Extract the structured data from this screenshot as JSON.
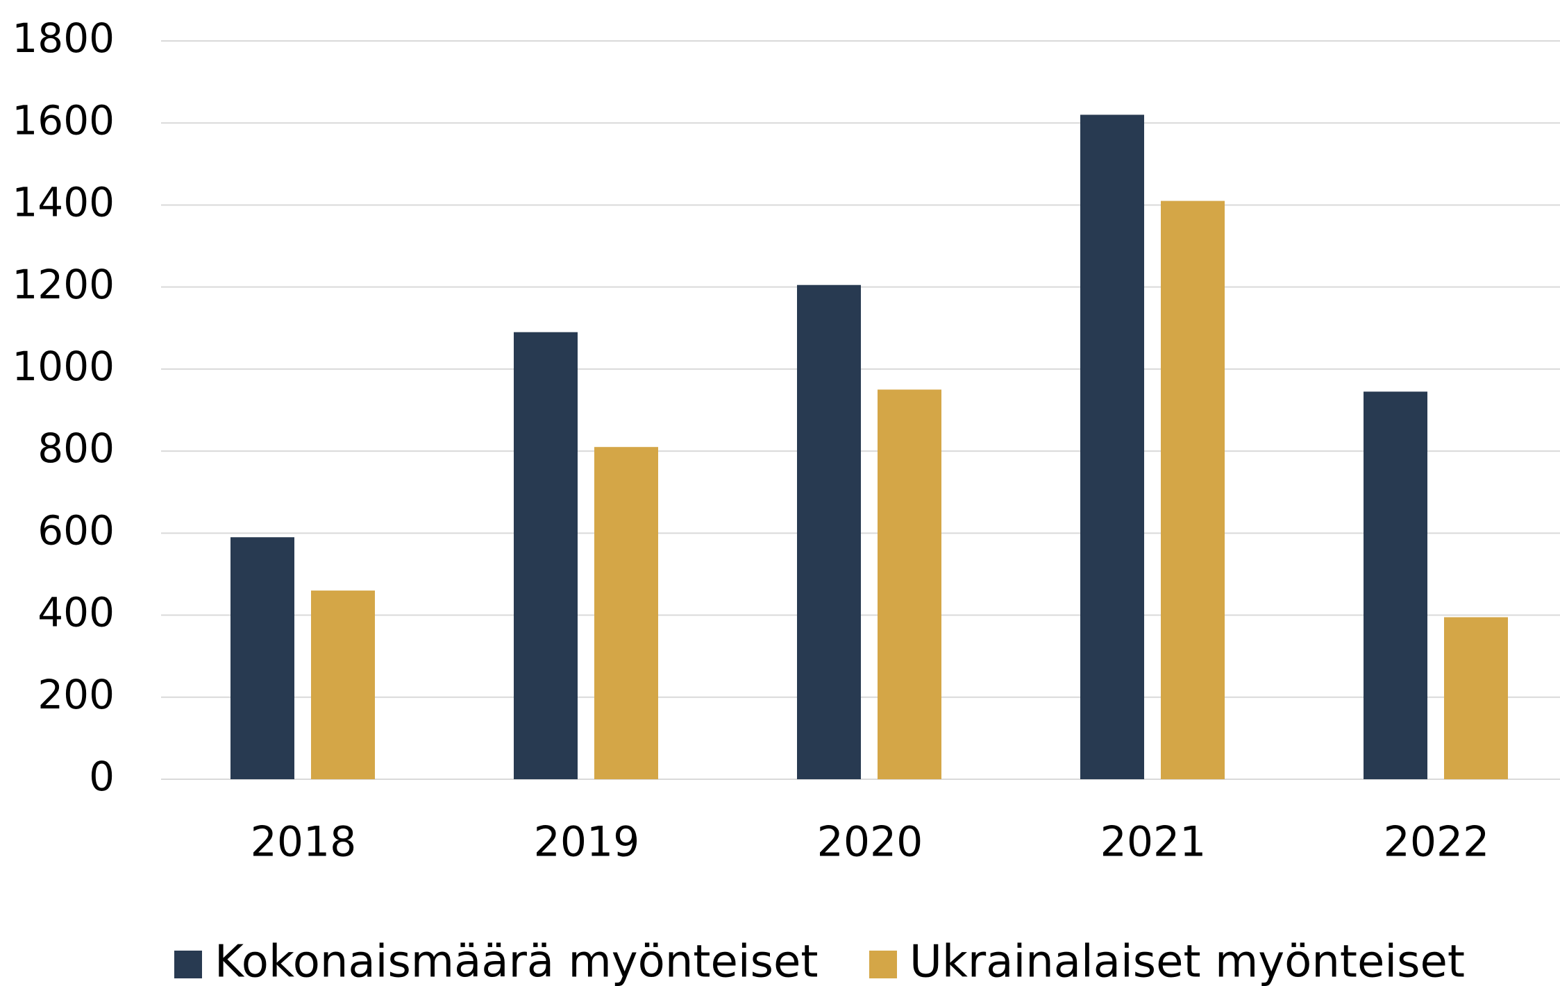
{
  "chart_data": {
    "type": "bar",
    "categories": [
      "2018",
      "2019",
      "2020",
      "2021",
      "2022"
    ],
    "series": [
      {
        "name": "Kokonaismäärä myönteiset",
        "color": "#283a51",
        "values": [
          590,
          1090,
          1205,
          1620,
          945
        ]
      },
      {
        "name": "Ukrainalaiset myönteiset",
        "color": "#d4a647",
        "values": [
          460,
          810,
          950,
          1410,
          395
        ]
      }
    ],
    "ylim": [
      0,
      1800
    ],
    "yticks": [
      0,
      200,
      400,
      600,
      800,
      1000,
      1200,
      1400,
      1600,
      1800
    ],
    "grid": true,
    "legend": "bottom"
  }
}
